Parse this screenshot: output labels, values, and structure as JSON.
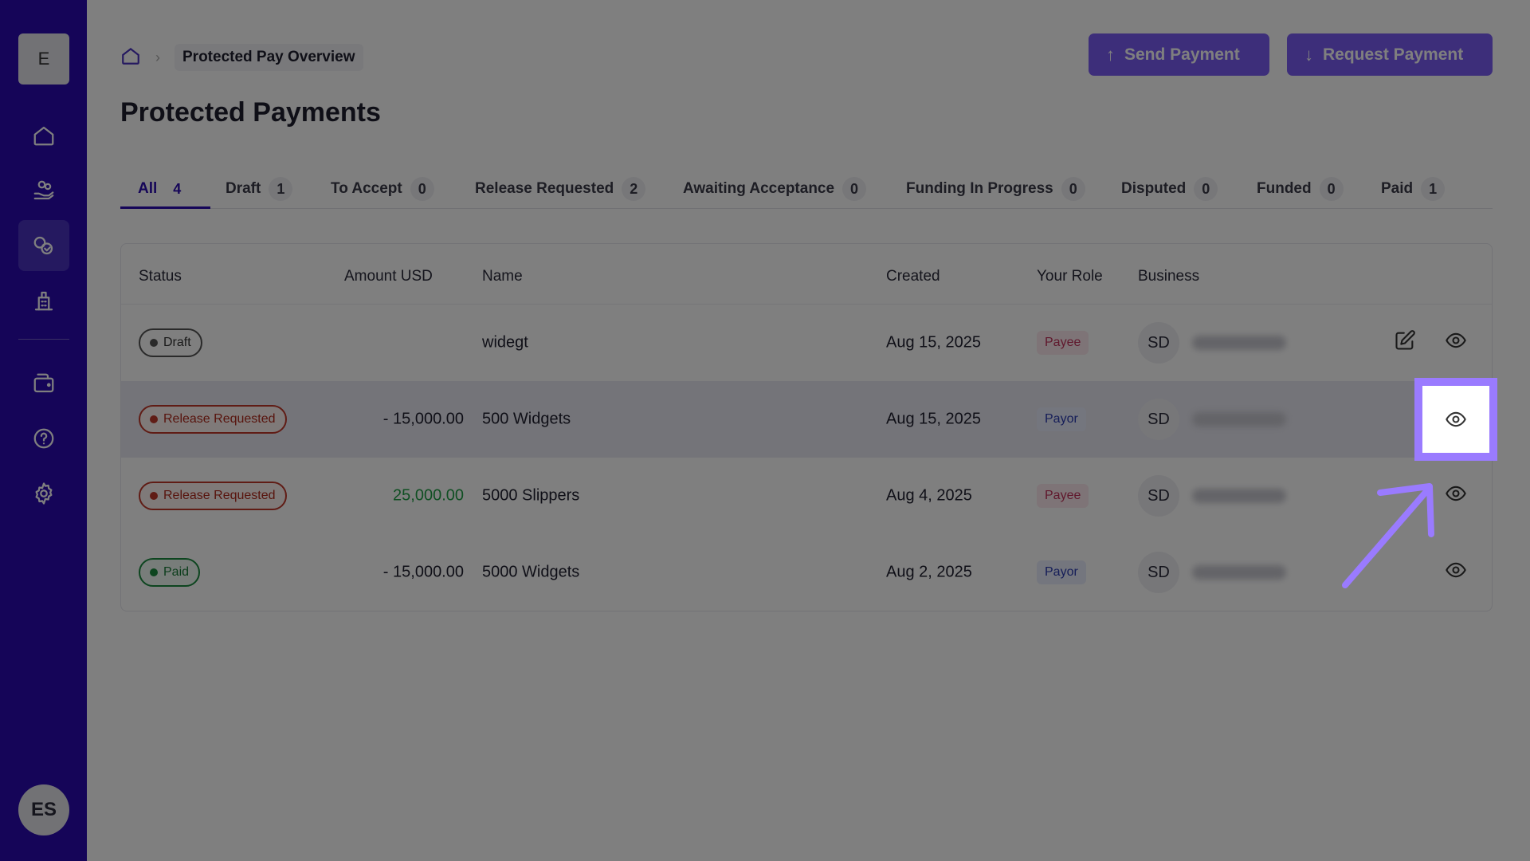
{
  "sidebar": {
    "logo_letter": "E",
    "items": [
      {
        "icon": "home-icon"
      },
      {
        "icon": "hand-coins-icon"
      },
      {
        "icon": "protected-pay-icon",
        "active": true
      },
      {
        "icon": "building-icon"
      },
      {
        "icon": "wallet-icon"
      },
      {
        "icon": "help-icon"
      },
      {
        "icon": "gear-icon"
      }
    ],
    "avatar_initials": "ES"
  },
  "header": {
    "breadcrumb_current": "Protected Pay Overview",
    "send_label": "Send Payment",
    "request_label": "Request Payment",
    "page_title": "Protected Payments"
  },
  "tabs": [
    {
      "label": "All",
      "count": "4"
    },
    {
      "label": "Draft",
      "count": "1"
    },
    {
      "label": "To Accept",
      "count": "0"
    },
    {
      "label": "Release Requested",
      "count": "2"
    },
    {
      "label": "Awaiting Acceptance",
      "count": "0"
    },
    {
      "label": "Funding In Progress",
      "count": "0"
    },
    {
      "label": "Disputed",
      "count": "0"
    },
    {
      "label": "Funded",
      "count": "0"
    },
    {
      "label": "Paid",
      "count": "1"
    }
  ],
  "table": {
    "headers": {
      "status": "Status",
      "amount": "Amount USD",
      "name": "Name",
      "created": "Created",
      "role": "Your Role",
      "business": "Business"
    },
    "rows": [
      {
        "status": "Draft",
        "amount": "",
        "name": "widegt",
        "created": "Aug 15, 2025",
        "role": "Payee",
        "business_initials": "SD"
      },
      {
        "status": "Release Requested",
        "amount": "- 15,000.00",
        "name": "500 Widgets",
        "created": "Aug 15, 2025",
        "role": "Payor",
        "business_initials": "SD"
      },
      {
        "status": "Release Requested",
        "amount": "25,000.00",
        "name": "5000 Slippers",
        "created": "Aug 4, 2025",
        "role": "Payee",
        "business_initials": "SD"
      },
      {
        "status": "Paid",
        "amount": "- 15,000.00",
        "name": "5000 Widgets",
        "created": "Aug 2, 2025",
        "role": "Payor",
        "business_initials": "SD"
      }
    ]
  },
  "colors": {
    "sidebar": "#2a0bb0",
    "accent": "#7b5cf5",
    "highlight": "#9a7bff"
  }
}
